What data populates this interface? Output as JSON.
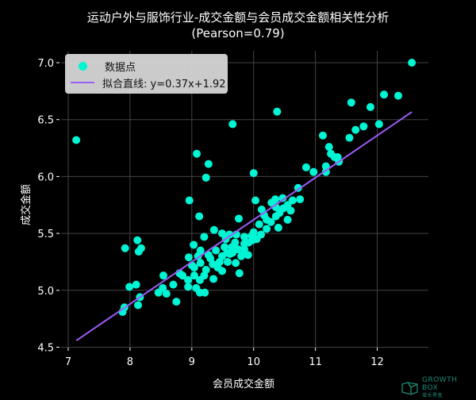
{
  "chart_data": {
    "type": "scatter",
    "title": "运动户外与服饰行业-成交金额与会员成交金额相关性分析",
    "subtitle": "(Pearson=0.79)",
    "xlabel": "会员成交金额",
    "ylabel": "成交金额",
    "xlim": [
      6.9,
      12.85
    ],
    "ylim": [
      4.45,
      7.08
    ],
    "xticks": [
      7,
      8,
      9,
      10,
      11,
      12
    ],
    "yticks": [
      4.5,
      5.0,
      5.5,
      6.0,
      6.5,
      7.0
    ],
    "ytick_labels": [
      "4.5",
      "5.0",
      "5.5",
      "6.0",
      "6.5",
      "7.0"
    ],
    "grid": true,
    "legend_position": "upper left",
    "series": [
      {
        "name": "数据点",
        "kind": "scatter",
        "color": "#00f5d4",
        "points": [
          [
            7.13,
            6.32
          ],
          [
            9.66,
            6.46
          ],
          [
            10.38,
            6.57
          ],
          [
            12.56,
            7.0
          ],
          [
            12.11,
            6.72
          ],
          [
            12.34,
            6.71
          ],
          [
            11.58,
            6.65
          ],
          [
            11.89,
            6.61
          ],
          [
            12.03,
            6.46
          ],
          [
            11.78,
            6.44
          ],
          [
            11.65,
            6.41
          ],
          [
            11.55,
            6.34
          ],
          [
            11.12,
            6.36
          ],
          [
            11.22,
            6.26
          ],
          [
            11.25,
            6.2
          ],
          [
            11.31,
            6.17
          ],
          [
            11.36,
            6.17
          ],
          [
            11.38,
            6.13
          ],
          [
            10.85,
            6.08
          ],
          [
            10.97,
            6.04
          ],
          [
            11.17,
            6.09
          ],
          [
            11.17,
            6.04
          ],
          [
            10.0,
            6.03
          ],
          [
            10.72,
            5.9
          ],
          [
            9.08,
            6.2
          ],
          [
            9.27,
            6.11
          ],
          [
            9.23,
            5.99
          ],
          [
            8.96,
            5.79
          ],
          [
            9.12,
            5.65
          ],
          [
            9.76,
            5.63
          ],
          [
            10.03,
            5.79
          ],
          [
            10.63,
            5.79
          ],
          [
            10.75,
            5.8
          ],
          [
            10.47,
            5.81
          ],
          [
            10.35,
            5.8
          ],
          [
            10.29,
            5.77
          ],
          [
            10.36,
            5.73
          ],
          [
            10.48,
            5.72
          ],
          [
            10.36,
            5.65
          ],
          [
            10.13,
            5.71
          ],
          [
            10.17,
            5.66
          ],
          [
            10.21,
            5.62
          ],
          [
            10.09,
            5.58
          ],
          [
            10.21,
            5.54
          ],
          [
            10.12,
            5.49
          ],
          [
            10.0,
            5.51
          ],
          [
            9.97,
            5.48
          ],
          [
            9.98,
            5.44
          ],
          [
            9.85,
            5.47
          ],
          [
            9.85,
            5.41
          ],
          [
            9.36,
            5.53
          ],
          [
            9.49,
            5.5
          ],
          [
            9.61,
            5.49
          ],
          [
            9.72,
            5.49
          ],
          [
            9.2,
            5.47
          ],
          [
            9.03,
            5.4
          ],
          [
            9.14,
            5.35
          ],
          [
            9.39,
            5.35
          ],
          [
            9.53,
            5.38
          ],
          [
            9.7,
            5.42
          ],
          [
            9.75,
            5.36
          ],
          [
            9.57,
            5.33
          ],
          [
            9.66,
            5.33
          ],
          [
            7.92,
            5.37
          ],
          [
            8.12,
            5.44
          ],
          [
            8.18,
            5.37
          ],
          [
            8.14,
            5.34
          ],
          [
            7.99,
            5.03
          ],
          [
            8.1,
            5.05
          ],
          [
            8.16,
            4.94
          ],
          [
            8.13,
            4.87
          ],
          [
            7.91,
            4.85
          ],
          [
            7.88,
            4.81
          ],
          [
            8.54,
            5.13
          ],
          [
            8.53,
            5.02
          ],
          [
            8.46,
            4.98
          ],
          [
            8.59,
            4.97
          ],
          [
            8.75,
            4.9
          ],
          [
            8.95,
            5.29
          ],
          [
            9.85,
            5.36
          ],
          [
            9.91,
            5.31
          ],
          [
            9.27,
            5.31
          ],
          [
            9.49,
            5.3
          ],
          [
            9.62,
            5.32
          ],
          [
            9.71,
            5.24
          ],
          [
            9.14,
            5.24
          ],
          [
            9.34,
            5.23
          ],
          [
            9.45,
            5.25
          ],
          [
            9.58,
            5.25
          ],
          [
            9.04,
            5.2
          ],
          [
            9.23,
            5.18
          ],
          [
            9.49,
            5.17
          ],
          [
            9.77,
            5.15
          ],
          [
            8.85,
            5.13
          ],
          [
            9.04,
            5.13
          ],
          [
            9.2,
            5.13
          ],
          [
            9.35,
            5.1
          ],
          [
            8.94,
            5.09
          ],
          [
            9.13,
            5.09
          ],
          [
            8.94,
            5.03
          ],
          [
            9.07,
            5.02
          ],
          [
            9.13,
            4.98
          ],
          [
            9.21,
            4.98
          ],
          [
            10.55,
            5.75
          ],
          [
            10.6,
            5.7
          ],
          [
            10.42,
            5.68
          ],
          [
            10.28,
            5.6
          ],
          [
            10.05,
            5.45
          ],
          [
            9.92,
            5.42
          ],
          [
            9.3,
            5.28
          ],
          [
            9.42,
            5.2
          ],
          [
            9.55,
            5.45
          ],
          [
            9.65,
            5.38
          ],
          [
            9.8,
            5.3
          ],
          [
            8.7,
            5.05
          ],
          [
            8.8,
            5.15
          ],
          [
            9.0,
            5.22
          ],
          [
            9.1,
            5.3
          ],
          [
            10.4,
            5.55
          ],
          [
            10.55,
            5.62
          ]
        ]
      },
      {
        "name": "拟合直线: y=0.37x+1.92",
        "kind": "line",
        "color": "#9b5cf6",
        "slope": 0.37,
        "intercept": 1.92,
        "x_range": [
          7.13,
          12.56
        ]
      }
    ]
  },
  "legend": {
    "items": [
      {
        "label": "数据点",
        "color": "#00f5d4"
      },
      {
        "label": "拟合直线: y=0.37x+1.92",
        "color": "#9b5cf6"
      }
    ]
  },
  "watermark": {
    "brand": "GROWTH BOX",
    "sub": "增长黑盒"
  }
}
